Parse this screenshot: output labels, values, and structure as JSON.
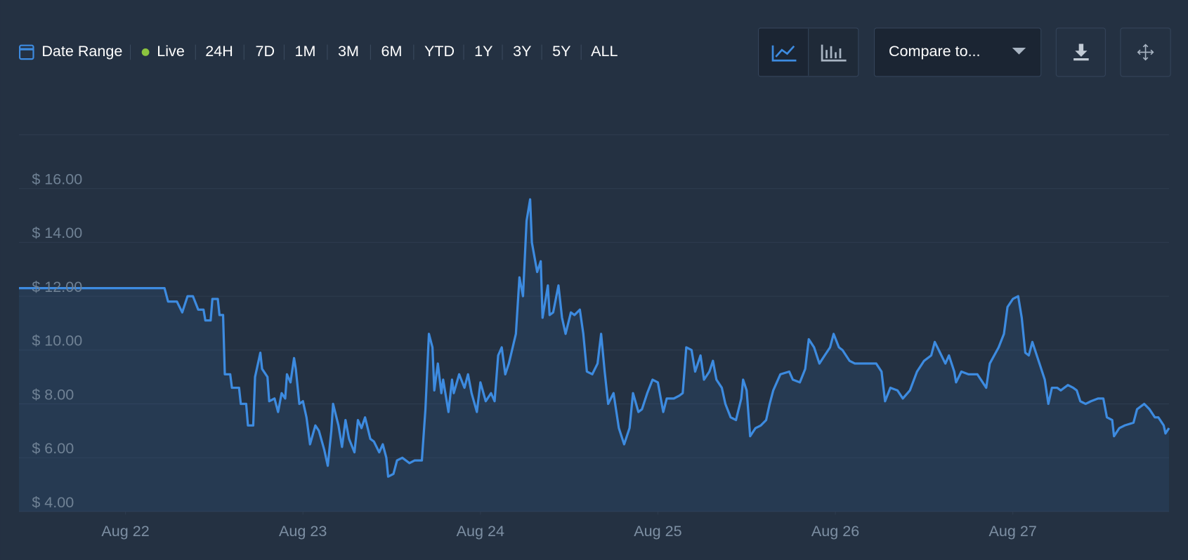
{
  "toolbar": {
    "date_range": "Date Range",
    "ranges": [
      "Live",
      "24H",
      "7D",
      "1M",
      "3M",
      "6M",
      "YTD",
      "1Y",
      "3Y",
      "5Y",
      "ALL"
    ],
    "compare": "Compare to..."
  },
  "chart_data": {
    "type": "line",
    "x": [
      21.4,
      22.22,
      22.24,
      22.29,
      22.32,
      22.35,
      22.38,
      22.41,
      22.44,
      22.45,
      22.48,
      22.49,
      22.52,
      22.53,
      22.55,
      22.56,
      22.59,
      22.6,
      22.64,
      22.65,
      22.68,
      22.69,
      22.72,
      22.73,
      22.76,
      22.77,
      22.8,
      22.81,
      22.84,
      22.86,
      22.88,
      22.9,
      22.91,
      22.93,
      22.95,
      22.96,
      22.98,
      23.0,
      23.02,
      23.04,
      23.07,
      23.09,
      23.12,
      23.14,
      23.16,
      23.17,
      23.2,
      23.22,
      23.24,
      23.26,
      23.29,
      23.31,
      23.33,
      23.35,
      23.38,
      23.4,
      23.43,
      23.45,
      23.47,
      23.48,
      23.51,
      23.53,
      23.56,
      23.6,
      23.63,
      23.67,
      23.69,
      23.71,
      23.73,
      23.74,
      23.76,
      23.78,
      23.79,
      23.82,
      23.84,
      23.85,
      23.88,
      23.91,
      23.93,
      23.95,
      23.98,
      24.0,
      24.03,
      24.06,
      24.08,
      24.1,
      24.12,
      24.14,
      24.16,
      24.2,
      24.22,
      24.24,
      24.26,
      24.28,
      24.29,
      24.32,
      24.34,
      24.35,
      24.38,
      24.39,
      24.41,
      24.44,
      24.46,
      24.48,
      24.51,
      24.53,
      24.56,
      24.58,
      24.6,
      24.63,
      24.66,
      24.68,
      24.7,
      24.72,
      24.75,
      24.78,
      24.81,
      24.84,
      24.86,
      24.89,
      24.91,
      24.94,
      24.97,
      25.0,
      25.03,
      25.05,
      25.09,
      25.12,
      25.14,
      25.16,
      25.19,
      25.21,
      25.24,
      25.26,
      25.29,
      25.31,
      25.33,
      25.36,
      25.38,
      25.41,
      25.44,
      25.47,
      25.48,
      25.5,
      25.52,
      25.55,
      25.58,
      25.61,
      25.63,
      25.65,
      25.69,
      25.74,
      25.76,
      25.8,
      25.83,
      25.85,
      25.88,
      25.91,
      25.94,
      25.97,
      25.99,
      26.02,
      26.04,
      26.08,
      26.11,
      26.15,
      26.18,
      26.23,
      26.26,
      26.28,
      26.31,
      26.35,
      26.38,
      26.42,
      26.46,
      26.5,
      26.54,
      26.56,
      26.59,
      26.62,
      26.64,
      26.67,
      26.68,
      26.71,
      26.75,
      26.8,
      26.85,
      26.87,
      26.92,
      26.95,
      26.97,
      27.0,
      27.03,
      27.05,
      27.07,
      27.09,
      27.11,
      27.13,
      27.15,
      27.18,
      27.2,
      27.22,
      27.25,
      27.27,
      27.31,
      27.34,
      27.36,
      27.38,
      27.41,
      27.44,
      27.48,
      27.51,
      27.53,
      27.56,
      27.57,
      27.6,
      27.63,
      27.68,
      27.7,
      27.74,
      27.77,
      27.8,
      27.82,
      27.85,
      27.86,
      27.88
    ],
    "series": [
      {
        "color": "#3d8be0",
        "values": [
          12.3,
          12.3,
          11.8,
          11.8,
          11.4,
          12.0,
          12.0,
          11.5,
          11.5,
          11.1,
          11.1,
          11.9,
          11.9,
          11.3,
          11.3,
          9.1,
          9.1,
          8.6,
          8.6,
          8.0,
          8.0,
          7.2,
          7.2,
          9.0,
          9.9,
          9.3,
          9.0,
          8.1,
          8.2,
          7.7,
          8.4,
          8.2,
          9.1,
          8.8,
          9.7,
          9.3,
          8.0,
          8.1,
          7.5,
          6.5,
          7.2,
          7.0,
          6.3,
          5.7,
          7.0,
          8.0,
          7.2,
          6.4,
          7.4,
          6.7,
          6.2,
          7.4,
          7.1,
          7.5,
          6.7,
          6.6,
          6.2,
          6.5,
          6.0,
          5.3,
          5.4,
          5.9,
          6.0,
          5.8,
          5.9,
          5.9,
          7.8,
          10.6,
          10.1,
          8.5,
          9.5,
          8.4,
          8.9,
          7.7,
          8.9,
          8.4,
          9.1,
          8.6,
          9.1,
          8.4,
          7.7,
          8.8,
          8.1,
          8.4,
          8.1,
          9.8,
          10.1,
          9.1,
          9.5,
          10.6,
          12.7,
          12.0,
          14.8,
          15.6,
          14.0,
          12.9,
          13.3,
          11.2,
          12.4,
          11.3,
          11.4,
          12.4,
          11.2,
          10.6,
          11.4,
          11.3,
          11.5,
          10.6,
          9.2,
          9.1,
          9.5,
          10.6,
          9.2,
          8.0,
          8.4,
          7.1,
          6.5,
          7.1,
          8.4,
          7.7,
          7.8,
          8.4,
          8.9,
          8.8,
          7.7,
          8.2,
          8.2,
          8.3,
          8.4,
          10.1,
          10.0,
          9.2,
          9.8,
          8.9,
          9.2,
          9.6,
          8.9,
          8.6,
          8.0,
          7.5,
          7.4,
          8.2,
          8.9,
          8.5,
          6.8,
          7.1,
          7.2,
          7.4,
          8.0,
          8.5,
          9.1,
          9.2,
          8.9,
          8.8,
          9.3,
          10.4,
          10.1,
          9.5,
          9.8,
          10.1,
          10.6,
          10.1,
          10.0,
          9.6,
          9.5,
          9.5,
          9.5,
          9.5,
          9.2,
          8.1,
          8.6,
          8.5,
          8.2,
          8.5,
          9.2,
          9.6,
          9.8,
          10.3,
          9.9,
          9.5,
          9.8,
          9.2,
          8.8,
          9.2,
          9.1,
          9.1,
          8.6,
          9.5,
          10.1,
          10.6,
          11.6,
          11.9,
          12.0,
          11.2,
          9.9,
          9.8,
          10.3,
          9.9,
          9.5,
          8.9,
          8.0,
          8.6,
          8.6,
          8.5,
          8.7,
          8.6,
          8.5,
          8.1,
          8.0,
          8.1,
          8.2,
          8.2,
          7.5,
          7.4,
          6.8,
          7.1,
          7.2,
          7.3,
          7.8,
          8.0,
          7.8,
          7.5,
          7.5,
          7.2,
          6.9,
          7.1
        ]
      }
    ],
    "xlim": [
      21.4,
      27.88
    ],
    "xticks": [
      {
        "value": 22,
        "label": "Aug 22"
      },
      {
        "value": 23,
        "label": "Aug 23"
      },
      {
        "value": 24,
        "label": "Aug 24"
      },
      {
        "value": 25,
        "label": "Aug 25"
      },
      {
        "value": 26,
        "label": "Aug 26"
      },
      {
        "value": 27,
        "label": "Aug 27"
      }
    ],
    "ylim": [
      4,
      18
    ],
    "yticks": [
      {
        "value": 4,
        "label": "$ 4.00"
      },
      {
        "value": 6,
        "label": "$ 6.00"
      },
      {
        "value": 8,
        "label": "$ 8.00"
      },
      {
        "value": 10,
        "label": "$ 10.00"
      },
      {
        "value": 12,
        "label": "$ 12.00"
      },
      {
        "value": 14,
        "label": "$ 14.00"
      },
      {
        "value": 16,
        "label": "$ 16.00"
      }
    ],
    "grid": true
  }
}
